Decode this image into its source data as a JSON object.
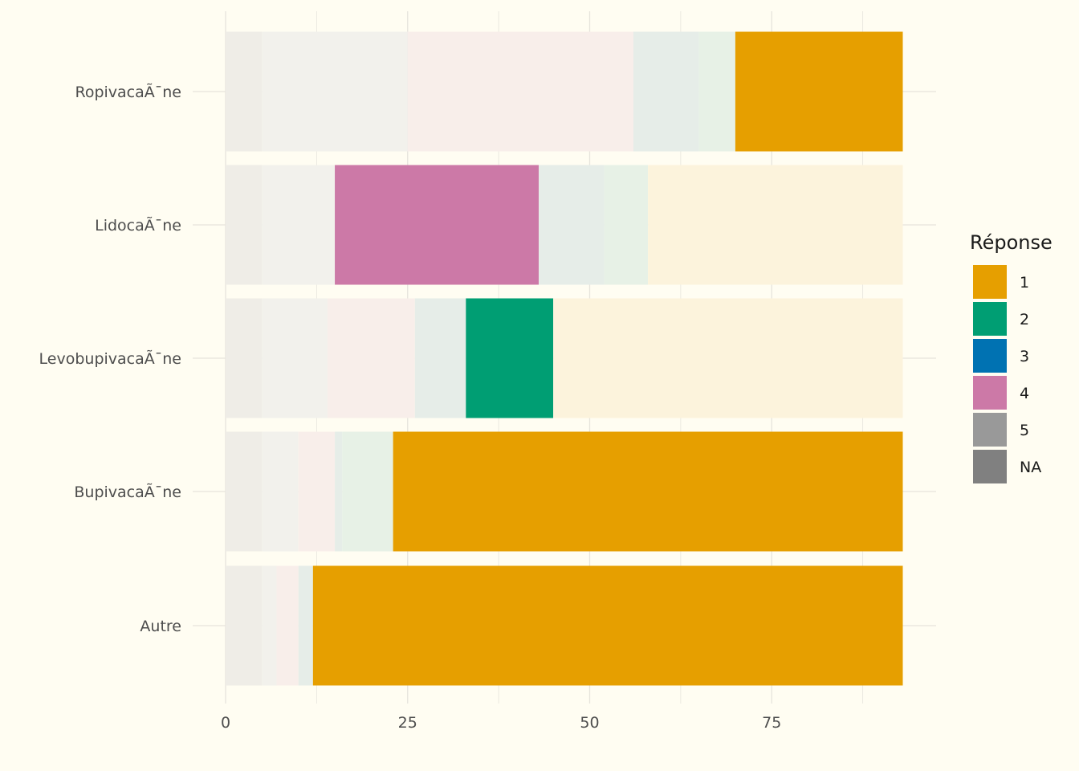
{
  "chart_data": {
    "type": "bar",
    "orientation": "horizontal",
    "stacked": true,
    "categories": [
      "Ropivacaïne",
      "Lidocaïne",
      "Levobupivacaïne",
      "Bupivacaïne",
      "Autre"
    ],
    "display_categories": [
      "RopivacaÃ¯ne",
      "LidocaÃ¯ne",
      "LevobupivacaÃ¯ne",
      "BupivacaÃ¯ne",
      "Autre"
    ],
    "segments": [
      [
        {
          "value": 5,
          "color": "#EFEDE7",
          "highlight": false
        },
        {
          "value": 20,
          "color": "#F2F1EC",
          "highlight": false
        },
        {
          "value": 31,
          "color": "#F8EEEA",
          "highlight": false
        },
        {
          "value": 9,
          "color": "#E6EDE8",
          "highlight": false
        },
        {
          "value": 5,
          "color": "#E7F1E6",
          "highlight": false
        },
        {
          "value": 23,
          "color": "#E69F00",
          "highlight": true
        }
      ],
      [
        {
          "value": 5,
          "color": "#EFEDE7",
          "highlight": false
        },
        {
          "value": 10,
          "color": "#F2F1EC",
          "highlight": false
        },
        {
          "value": 28,
          "color": "#CC79A7",
          "highlight": true
        },
        {
          "value": 9,
          "color": "#E6EDE8",
          "highlight": false
        },
        {
          "value": 6,
          "color": "#E7F1E6",
          "highlight": false
        },
        {
          "value": 35,
          "color": "#FCF3DC",
          "highlight": false
        }
      ],
      [
        {
          "value": 5,
          "color": "#EFEDE7",
          "highlight": false
        },
        {
          "value": 9,
          "color": "#F2F1EC",
          "highlight": false
        },
        {
          "value": 12,
          "color": "#F8EEEA",
          "highlight": false
        },
        {
          "value": 7,
          "color": "#E6EDE8",
          "highlight": false
        },
        {
          "value": 12,
          "color": "#009E73",
          "highlight": true
        },
        {
          "value": 48,
          "color": "#FCF3DC",
          "highlight": false
        }
      ],
      [
        {
          "value": 5,
          "color": "#EFEDE7",
          "highlight": false
        },
        {
          "value": 5,
          "color": "#F2F1EC",
          "highlight": false
        },
        {
          "value": 5,
          "color": "#F8EEEA",
          "highlight": false
        },
        {
          "value": 1,
          "color": "#E6EDE8",
          "highlight": false
        },
        {
          "value": 7,
          "color": "#E7F1E6",
          "highlight": false
        },
        {
          "value": 70,
          "color": "#E69F00",
          "highlight": true
        }
      ],
      [
        {
          "value": 5,
          "color": "#EFEDE7",
          "highlight": false
        },
        {
          "value": 2,
          "color": "#F2F1EC",
          "highlight": false
        },
        {
          "value": 3,
          "color": "#F8EEEA",
          "highlight": false
        },
        {
          "value": 2,
          "color": "#E6EDE8",
          "highlight": false
        },
        {
          "value": 81,
          "color": "#E69F00",
          "highlight": true
        }
      ]
    ],
    "x_ticks": [
      0,
      25,
      50,
      75
    ],
    "xlim": [
      0,
      97
    ],
    "xlabel": "",
    "ylabel": "",
    "grid": true,
    "legend": {
      "title": "Réponse",
      "position": "right",
      "items": [
        {
          "label": "1",
          "color": "#E69F00"
        },
        {
          "label": "2",
          "color": "#009E73"
        },
        {
          "label": "3",
          "color": "#0072B2"
        },
        {
          "label": "4",
          "color": "#CC79A7"
        },
        {
          "label": "5",
          "color": "#999999"
        },
        {
          "label": "NA",
          "color": "#808080"
        }
      ]
    },
    "background_color": "#FFFDF2",
    "grid_color": "#E6E4DC"
  }
}
